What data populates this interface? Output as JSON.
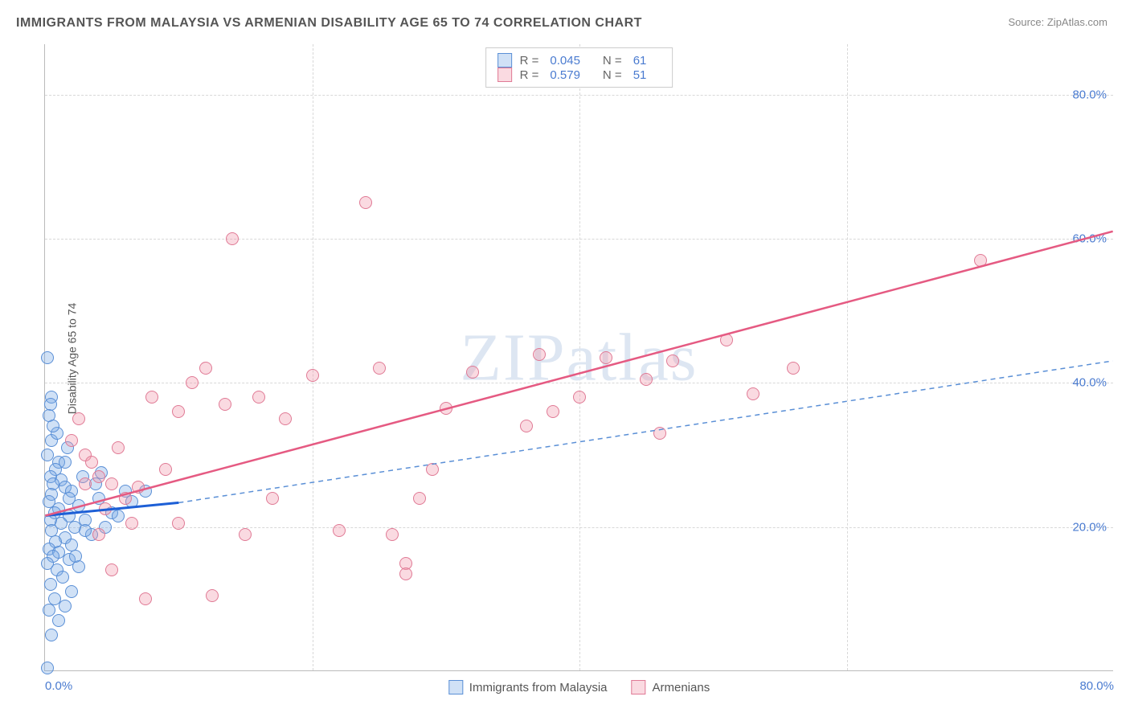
{
  "title": "IMMIGRANTS FROM MALAYSIA VS ARMENIAN DISABILITY AGE 65 TO 74 CORRELATION CHART",
  "source_label": "Source: ",
  "source_value": "ZipAtlas.com",
  "watermark": "ZIPatlas",
  "ylabel": "Disability Age 65 to 74",
  "chart": {
    "type": "scatter",
    "x_range": [
      0,
      80
    ],
    "y_range": [
      0,
      87
    ],
    "x_ticks": [
      0,
      20,
      40,
      60,
      80
    ],
    "y_ticks": [
      20,
      40,
      60,
      80
    ],
    "x_tick_labels": [
      "0.0%",
      "",
      "",
      "",
      "80.0%"
    ],
    "y_tick_labels": [
      "20.0%",
      "40.0%",
      "60.0%",
      "80.0%"
    ],
    "grid_color": "#d8d8d8",
    "axis_color": "#bbbbbb",
    "background": "#ffffff",
    "marker_radius": 8,
    "series": [
      {
        "name": "Immigrants from Malaysia",
        "fill": "rgba(120,170,230,0.35)",
        "stroke": "#5a8fd6",
        "R": "0.045",
        "N": "61",
        "trend": {
          "x1": 0,
          "y1": 21.5,
          "x2": 10,
          "y2": 23.3,
          "color": "#1d5fd6",
          "width": 3,
          "dash": null
        },
        "trend_ext": {
          "x1": 10,
          "y1": 23.3,
          "x2": 80,
          "y2": 43,
          "color": "#5a8fd6",
          "width": 1.5,
          "dash": "6 5"
        },
        "points": [
          [
            0.2,
            43.5
          ],
          [
            0.5,
            38
          ],
          [
            0.4,
            37
          ],
          [
            0.3,
            35.5
          ],
          [
            0.5,
            32
          ],
          [
            0.2,
            30
          ],
          [
            1,
            29
          ],
          [
            0.8,
            28
          ],
          [
            0.4,
            27
          ],
          [
            1.2,
            26.5
          ],
          [
            0.6,
            26
          ],
          [
            1.5,
            25.5
          ],
          [
            2,
            25
          ],
          [
            0.5,
            24.5
          ],
          [
            1.8,
            24
          ],
          [
            0.3,
            23.5
          ],
          [
            2.5,
            23
          ],
          [
            1,
            22.5
          ],
          [
            0.7,
            22
          ],
          [
            1.8,
            21.5
          ],
          [
            0.4,
            21
          ],
          [
            3,
            21
          ],
          [
            1.2,
            20.5
          ],
          [
            2.2,
            20
          ],
          [
            0.5,
            19.5
          ],
          [
            3.5,
            19
          ],
          [
            1.5,
            18.5
          ],
          [
            0.8,
            18
          ],
          [
            2,
            17.5
          ],
          [
            0.3,
            17
          ],
          [
            1,
            16.5
          ],
          [
            0.6,
            16
          ],
          [
            1.8,
            15.5
          ],
          [
            0.2,
            15
          ],
          [
            2.5,
            14.5
          ],
          [
            0.9,
            14
          ],
          [
            1.3,
            13
          ],
          [
            0.4,
            12
          ],
          [
            2,
            11
          ],
          [
            0.7,
            10
          ],
          [
            1.5,
            9
          ],
          [
            0.3,
            8.5
          ],
          [
            1,
            7
          ],
          [
            0.5,
            5
          ],
          [
            0.2,
            0.5
          ],
          [
            4,
            24
          ],
          [
            5,
            22
          ],
          [
            6,
            25
          ],
          [
            3.8,
            26
          ],
          [
            4.5,
            20
          ],
          [
            2.8,
            27
          ],
          [
            6.5,
            23.5
          ],
          [
            7.5,
            25
          ],
          [
            1.5,
            29
          ],
          [
            0.9,
            33
          ],
          [
            3,
            19.5
          ],
          [
            5.5,
            21.5
          ],
          [
            2.3,
            16
          ],
          [
            4.2,
            27.5
          ],
          [
            1.7,
            31
          ],
          [
            0.6,
            34
          ]
        ]
      },
      {
        "name": "Armenians",
        "fill": "rgba(240,150,170,0.35)",
        "stroke": "#e07a95",
        "R": "0.579",
        "N": "51",
        "trend": {
          "x1": 0,
          "y1": 21.5,
          "x2": 80,
          "y2": 61,
          "color": "#e55a82",
          "width": 2.5,
          "dash": null
        },
        "points": [
          [
            3,
            30
          ],
          [
            4,
            27
          ],
          [
            5,
            26
          ],
          [
            2,
            32
          ],
          [
            4.5,
            22.5
          ],
          [
            6,
            24
          ],
          [
            3.5,
            29
          ],
          [
            5.5,
            31
          ],
          [
            7,
            25.5
          ],
          [
            2.5,
            35
          ],
          [
            8,
            38
          ],
          [
            9,
            28
          ],
          [
            6.5,
            20.5
          ],
          [
            10,
            36
          ],
          [
            11,
            40
          ],
          [
            4,
            19
          ],
          [
            12,
            42
          ],
          [
            13.5,
            37
          ],
          [
            5,
            14
          ],
          [
            14,
            60
          ],
          [
            15,
            19
          ],
          [
            7.5,
            10
          ],
          [
            16,
            38
          ],
          [
            17,
            24
          ],
          [
            12.5,
            10.5
          ],
          [
            18,
            35
          ],
          [
            20,
            41
          ],
          [
            10,
            20.5
          ],
          [
            24,
            65
          ],
          [
            22,
            19.5
          ],
          [
            25,
            42
          ],
          [
            26,
            19
          ],
          [
            27,
            15
          ],
          [
            28,
            24
          ],
          [
            30,
            36.5
          ],
          [
            32,
            41.5
          ],
          [
            29,
            28
          ],
          [
            36,
            34
          ],
          [
            37,
            44
          ],
          [
            38,
            36
          ],
          [
            40,
            38
          ],
          [
            42,
            43.5
          ],
          [
            27,
            13.5
          ],
          [
            45,
            40.5
          ],
          [
            46,
            33
          ],
          [
            47,
            43
          ],
          [
            51,
            46
          ],
          [
            53,
            38.5
          ],
          [
            56,
            42
          ],
          [
            70,
            57
          ],
          [
            3,
            26
          ]
        ]
      }
    ]
  },
  "legend_bottom": [
    {
      "label": "Immigrants from Malaysia",
      "fill": "rgba(120,170,230,0.35)",
      "stroke": "#5a8fd6"
    },
    {
      "label": "Armenians",
      "fill": "rgba(240,150,170,0.35)",
      "stroke": "#e07a95"
    }
  ]
}
